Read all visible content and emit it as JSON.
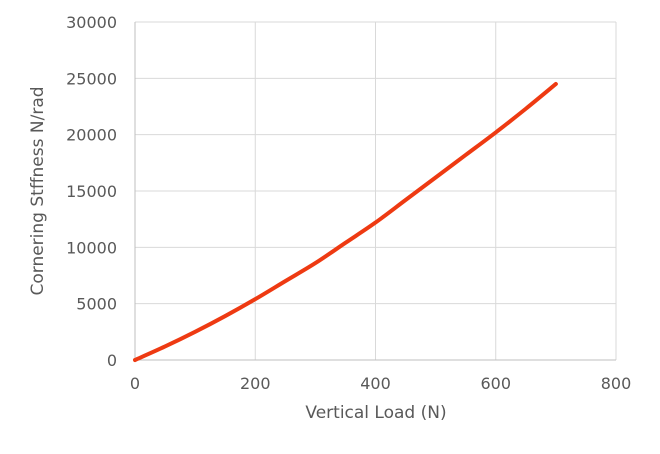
{
  "chart_data": {
    "type": "line",
    "title": "",
    "xlabel": "Vertical Load (N)",
    "ylabel": "Cornering Stffness N/rad",
    "xlim": [
      0,
      800
    ],
    "ylim": [
      0,
      30000
    ],
    "x_ticks": [
      "0",
      "200",
      "400",
      "600",
      "800"
    ],
    "y_ticks": [
      "0",
      "5000",
      "10000",
      "15000",
      "20000",
      "25000",
      "30000"
    ],
    "grid": true,
    "legend": "none",
    "series": [
      {
        "color": "#ee3a12",
        "x": [
          0,
          50,
          100,
          150,
          200,
          250,
          300,
          350,
          400,
          450,
          500,
          550,
          600,
          650,
          700
        ],
        "y": [
          0,
          1200,
          2500,
          3900,
          5400,
          7000,
          8600,
          10400,
          12200,
          14200,
          16200,
          18200,
          20200,
          22300,
          24500
        ]
      }
    ]
  }
}
